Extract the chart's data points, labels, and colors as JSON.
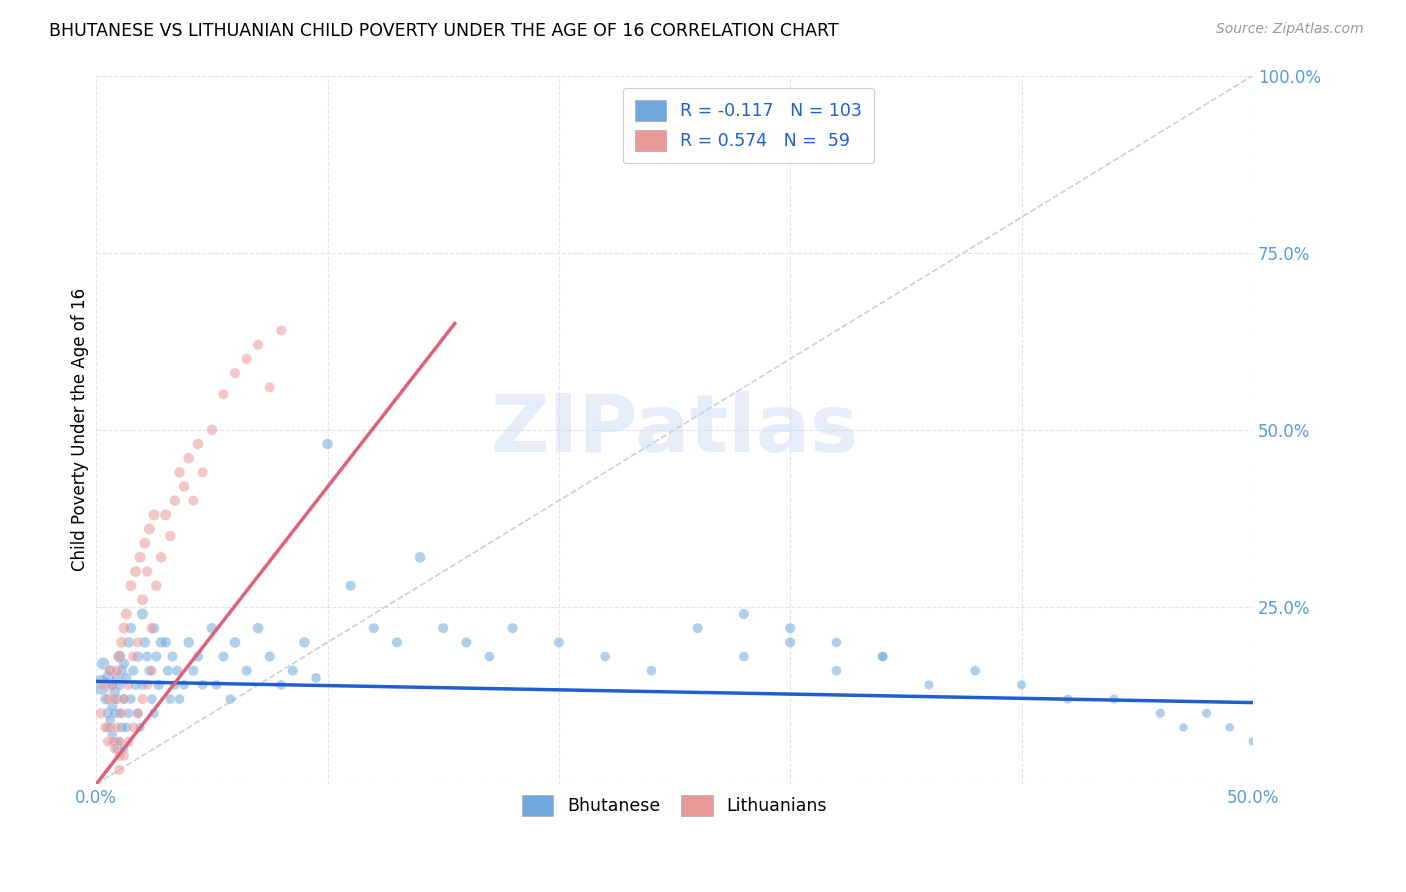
{
  "title": "BHUTANESE VS LITHUANIAN CHILD POVERTY UNDER THE AGE OF 16 CORRELATION CHART",
  "source": "Source: ZipAtlas.com",
  "ylabel": "Child Poverty Under the Age of 16",
  "xlim": [
    0.0,
    0.5
  ],
  "ylim": [
    0.0,
    1.0
  ],
  "bhutanese_color": "#6fa8dc",
  "lithuanian_color": "#ea9999",
  "bhutanese_R": -0.117,
  "bhutanese_N": 103,
  "lithuanian_R": 0.574,
  "lithuanian_N": 59,
  "legend_x_label": "Bhutanese",
  "legend_y_label": "Lithuanians",
  "watermark": "ZIPatlas",
  "background_color": "#ffffff",
  "grid_color": "#d8d8e8",
  "bhutanese_line": {
    "x0": 0.0,
    "x1": 0.5,
    "y0": 0.145,
    "y1": 0.115
  },
  "lithuanian_line": {
    "x0": 0.0,
    "x1": 0.155,
    "y0": 0.0,
    "y1": 0.65
  },
  "diagonal_line": {
    "x0": 0.0,
    "x1": 0.5,
    "y0": 0.0,
    "y1": 1.0
  },
  "bhutanese_x": [
    0.002,
    0.003,
    0.004,
    0.005,
    0.005,
    0.005,
    0.006,
    0.006,
    0.007,
    0.007,
    0.007,
    0.008,
    0.008,
    0.008,
    0.009,
    0.009,
    0.009,
    0.01,
    0.01,
    0.01,
    0.01,
    0.011,
    0.011,
    0.012,
    0.012,
    0.012,
    0.013,
    0.013,
    0.014,
    0.014,
    0.015,
    0.015,
    0.016,
    0.017,
    0.018,
    0.018,
    0.019,
    0.02,
    0.02,
    0.021,
    0.022,
    0.023,
    0.024,
    0.025,
    0.025,
    0.026,
    0.027,
    0.028,
    0.03,
    0.031,
    0.032,
    0.033,
    0.034,
    0.035,
    0.036,
    0.038,
    0.04,
    0.042,
    0.044,
    0.046,
    0.05,
    0.052,
    0.055,
    0.058,
    0.06,
    0.065,
    0.07,
    0.075,
    0.08,
    0.085,
    0.09,
    0.095,
    0.1,
    0.11,
    0.12,
    0.13,
    0.14,
    0.15,
    0.16,
    0.17,
    0.18,
    0.2,
    0.22,
    0.24,
    0.26,
    0.28,
    0.3,
    0.32,
    0.34,
    0.36,
    0.38,
    0.4,
    0.42,
    0.44,
    0.46,
    0.47,
    0.48,
    0.49,
    0.5,
    0.28,
    0.3,
    0.32,
    0.34
  ],
  "bhutanese_y": [
    0.14,
    0.17,
    0.12,
    0.15,
    0.1,
    0.08,
    0.16,
    0.09,
    0.14,
    0.11,
    0.07,
    0.13,
    0.1,
    0.06,
    0.15,
    0.12,
    0.05,
    0.18,
    0.14,
    0.1,
    0.06,
    0.16,
    0.08,
    0.17,
    0.12,
    0.05,
    0.15,
    0.08,
    0.2,
    0.1,
    0.22,
    0.12,
    0.16,
    0.14,
    0.18,
    0.1,
    0.08,
    0.24,
    0.14,
    0.2,
    0.18,
    0.16,
    0.12,
    0.22,
    0.1,
    0.18,
    0.14,
    0.2,
    0.2,
    0.16,
    0.12,
    0.18,
    0.14,
    0.16,
    0.12,
    0.14,
    0.2,
    0.16,
    0.18,
    0.14,
    0.22,
    0.14,
    0.18,
    0.12,
    0.2,
    0.16,
    0.22,
    0.18,
    0.14,
    0.16,
    0.2,
    0.15,
    0.48,
    0.28,
    0.22,
    0.2,
    0.32,
    0.22,
    0.2,
    0.18,
    0.22,
    0.2,
    0.18,
    0.16,
    0.22,
    0.18,
    0.2,
    0.16,
    0.18,
    0.14,
    0.16,
    0.14,
    0.12,
    0.12,
    0.1,
    0.08,
    0.1,
    0.08,
    0.06,
    0.24,
    0.22,
    0.2,
    0.18
  ],
  "bhutanese_sizes": [
    200,
    80,
    60,
    80,
    60,
    50,
    60,
    50,
    60,
    55,
    50,
    60,
    55,
    45,
    65,
    55,
    45,
    70,
    60,
    50,
    45,
    60,
    50,
    60,
    55,
    45,
    60,
    50,
    60,
    50,
    60,
    50,
    55,
    55,
    60,
    50,
    45,
    65,
    55,
    60,
    55,
    55,
    50,
    60,
    50,
    55,
    55,
    60,
    60,
    55,
    50,
    55,
    50,
    55,
    50,
    50,
    60,
    55,
    55,
    50,
    60,
    50,
    55,
    50,
    60,
    55,
    60,
    55,
    50,
    55,
    60,
    50,
    60,
    55,
    55,
    55,
    60,
    55,
    55,
    50,
    55,
    55,
    50,
    50,
    55,
    50,
    55,
    50,
    50,
    45,
    50,
    45,
    45,
    45,
    45,
    40,
    45,
    40,
    40,
    55,
    55,
    50,
    50
  ],
  "lithuanian_x": [
    0.002,
    0.003,
    0.004,
    0.005,
    0.005,
    0.006,
    0.006,
    0.007,
    0.007,
    0.008,
    0.008,
    0.009,
    0.009,
    0.01,
    0.01,
    0.011,
    0.011,
    0.012,
    0.012,
    0.013,
    0.014,
    0.015,
    0.016,
    0.017,
    0.018,
    0.019,
    0.02,
    0.021,
    0.022,
    0.023,
    0.024,
    0.025,
    0.026,
    0.028,
    0.03,
    0.032,
    0.034,
    0.036,
    0.038,
    0.04,
    0.042,
    0.044,
    0.046,
    0.05,
    0.055,
    0.06,
    0.065,
    0.07,
    0.075,
    0.08,
    0.01,
    0.01,
    0.012,
    0.014,
    0.016,
    0.018,
    0.02,
    0.022,
    0.024
  ],
  "lithuanian_y": [
    0.1,
    0.14,
    0.08,
    0.12,
    0.06,
    0.16,
    0.08,
    0.14,
    0.06,
    0.12,
    0.05,
    0.16,
    0.08,
    0.18,
    0.06,
    0.2,
    0.1,
    0.22,
    0.12,
    0.24,
    0.14,
    0.28,
    0.18,
    0.3,
    0.2,
    0.32,
    0.26,
    0.34,
    0.3,
    0.36,
    0.22,
    0.38,
    0.28,
    0.32,
    0.38,
    0.35,
    0.4,
    0.44,
    0.42,
    0.46,
    0.4,
    0.48,
    0.44,
    0.5,
    0.55,
    0.58,
    0.6,
    0.62,
    0.56,
    0.64,
    0.02,
    0.04,
    0.04,
    0.06,
    0.08,
    0.1,
    0.12,
    0.14,
    0.16
  ],
  "lithuanian_sizes": [
    60,
    60,
    55,
    65,
    55,
    65,
    55,
    65,
    55,
    65,
    55,
    65,
    55,
    70,
    55,
    65,
    55,
    65,
    55,
    65,
    55,
    65,
    55,
    65,
    55,
    65,
    65,
    65,
    60,
    65,
    60,
    65,
    60,
    60,
    65,
    60,
    60,
    60,
    60,
    60,
    55,
    60,
    55,
    60,
    55,
    55,
    55,
    55,
    55,
    55,
    55,
    55,
    55,
    55,
    55,
    55,
    55,
    55,
    55
  ]
}
